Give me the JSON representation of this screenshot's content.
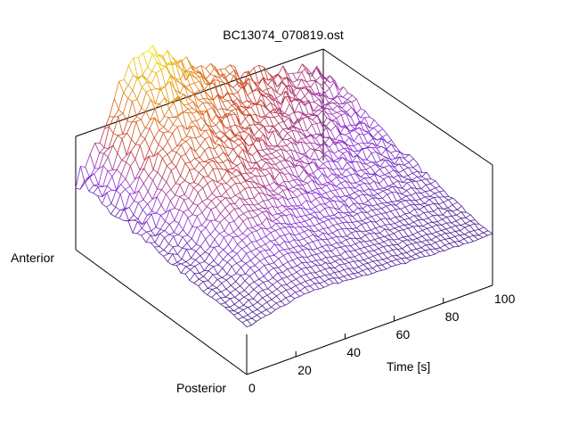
{
  "chart_data": {
    "type": "surface",
    "title": "BC13074_070819.ost",
    "xlabel": "Time [s]",
    "x_ticks": [
      "0",
      "20",
      "40",
      "60",
      "80",
      "100"
    ],
    "xlim": [
      0,
      100
    ],
    "y_end_labels": {
      "front": "Posterior",
      "back": "Anterior"
    },
    "color_scale": [
      "#3a1a80",
      "#8a2cd8",
      "#c23a28",
      "#e07d10",
      "#f2e600"
    ],
    "surface_description": "Waterfall mesh rising from the Anterior-Posterior baseline; near Posterior the signal stays flat, toward Anterior it peaks around 20–35 s then decays by 100 s",
    "grid": "mesh",
    "z_visible": false,
    "profile_rows": 40,
    "profile_cols": 52
  }
}
